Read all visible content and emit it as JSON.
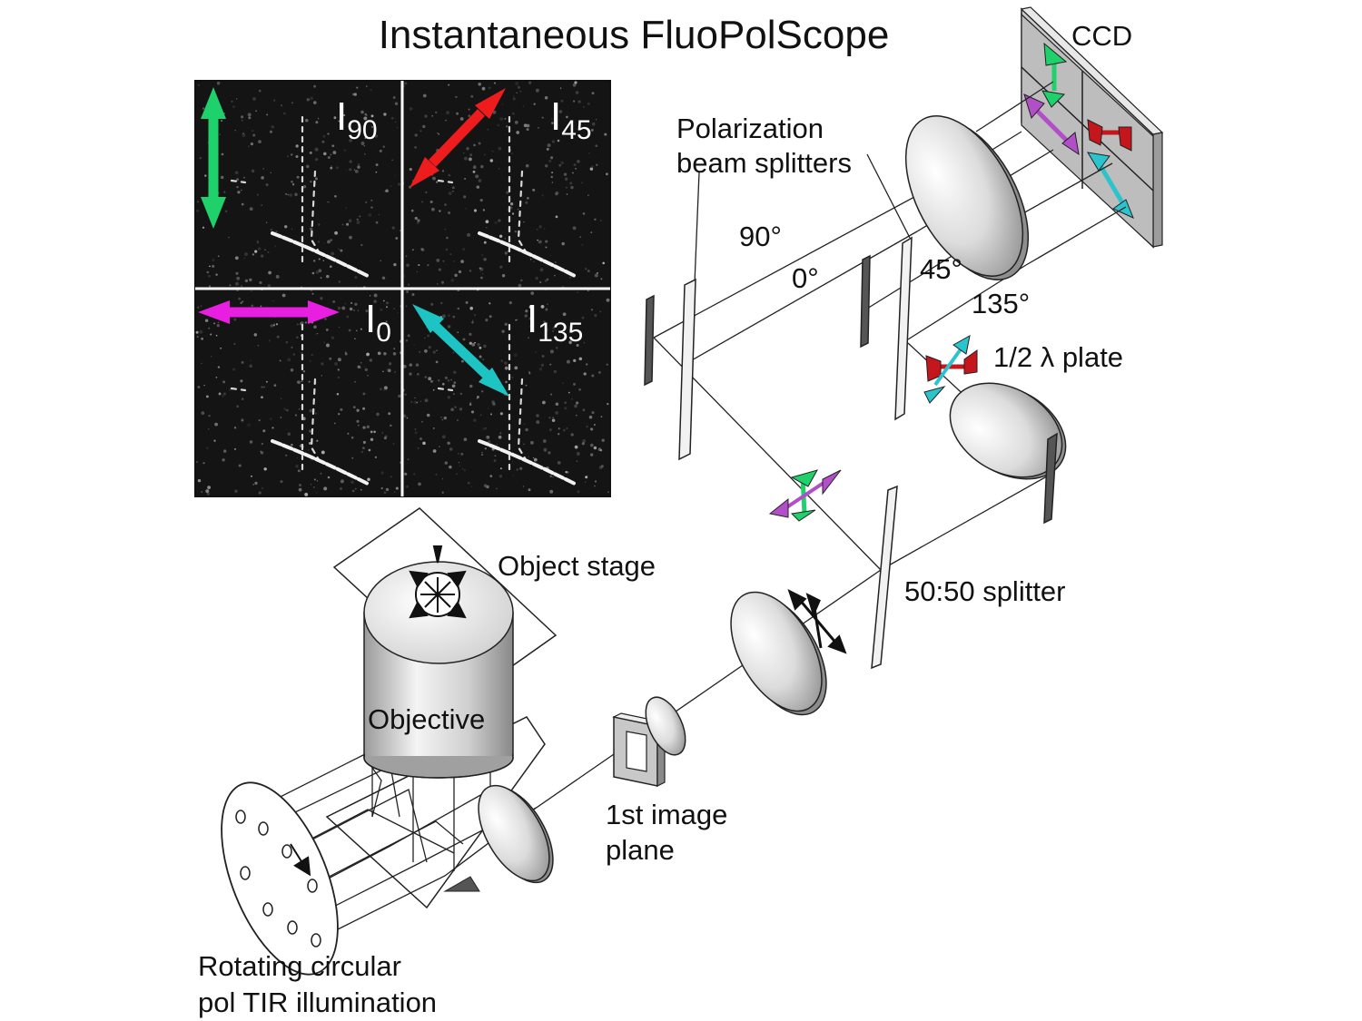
{
  "title": "Instantaneous FluoPolScope",
  "labels": {
    "ccd": "CCD",
    "pbs_line1": "Polarization",
    "pbs_line2": "beam splitters",
    "angle_90": "90°",
    "angle_0": "0°",
    "angle_45": "45°",
    "angle_135": "135°",
    "half_wave": "1/2 λ plate",
    "object_stage": "Object stage",
    "splitter_5050": "50:50 splitter",
    "objective": "Objective",
    "image_plane_line1": "1st image",
    "image_plane_line2": "plane",
    "illum_line1": "Rotating circular",
    "illum_line2": "pol TIR illumination"
  },
  "quadrants": [
    {
      "base": "I",
      "sub": "90",
      "arrow_color": "#1fd16b"
    },
    {
      "base": "I",
      "sub": "45",
      "arrow_color": "#ee1c1c"
    },
    {
      "base": "I",
      "sub": "0",
      "arrow_color": "#e81ee0"
    },
    {
      "base": "I",
      "sub": "135",
      "arrow_color": "#1ec3c3"
    }
  ],
  "colors": {
    "green": "#1fd16b",
    "red": "#ee1c1c",
    "magenta": "#e81ee0",
    "cyan": "#1ec3c3",
    "purple": "#b24ec8",
    "dark_red": "#c4161c",
    "teal": "#2cc4cc"
  }
}
